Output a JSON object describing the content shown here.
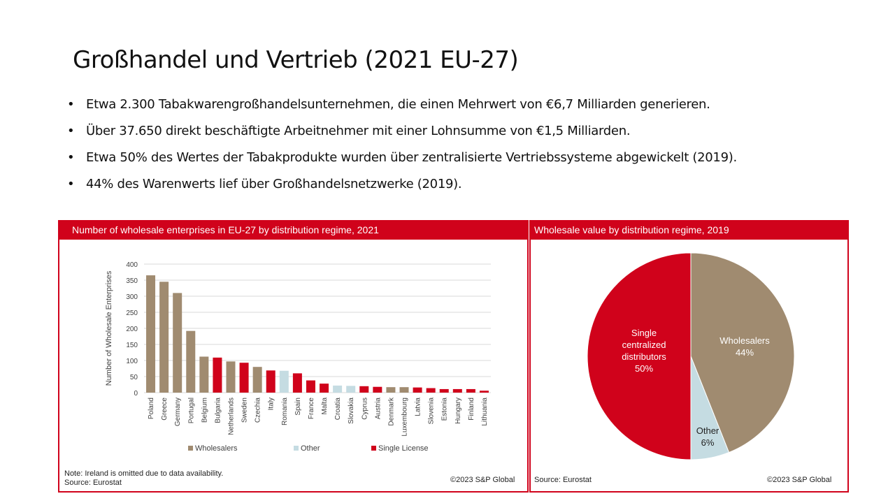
{
  "slide": {
    "title": "Großhandel und Vertrieb (2021 EU-27)",
    "bullet_char": "•",
    "bullets": [
      "Etwa 2.300 Tabakwarengroßhandelsunternehmen, die einen Mehrwert von €6,7 Milliarden generieren.",
      "Über 37.650 direkt beschäftigte Arbeitnehmer mit einer Lohnsumme von €1,5 Milliarden.",
      "Etwa 50% des Wertes der Tabakprodukte wurden über zentralisierte Vertriebssysteme abgewickelt (2019).",
      "44% des Warenwerts lief über Großhandelsnetzwerke (2019)."
    ]
  },
  "left_panel": {
    "header": "Number of wholesale enterprises in EU-27 by distribution regime, 2021",
    "note": "Note: Ireland is omitted due to data availability.",
    "source": "Source: Eurostat",
    "copyright": "©2023 S&P Global"
  },
  "right_panel": {
    "header": "Wholesale value by distribution regime, 2019",
    "source": "Source: Eurostat",
    "copyright": "©2023 S&P Global"
  },
  "colors": {
    "accent_red": "#d0021b",
    "wholesalers": "#a08b70",
    "other": "#c5dce2",
    "single": "#d0021b"
  },
  "chart_data": [
    {
      "type": "bar",
      "title": "Number of wholesale enterprises in EU-27 by distribution regime, 2021",
      "ylabel": "Number of Wholesale Enterprises",
      "ylim": [
        0,
        400
      ],
      "yticks": [
        0,
        50,
        100,
        150,
        200,
        250,
        300,
        350,
        400
      ],
      "grid": true,
      "legend": {
        "placement": "bottom",
        "entries": [
          {
            "name": "Wholesalers",
            "color": "#a08b70"
          },
          {
            "name": "Other",
            "color": "#c5dce2"
          },
          {
            "name": "Single License",
            "color": "#d0021b"
          }
        ]
      },
      "categories": [
        "Poland",
        "Greece",
        "Germany",
        "Portugal",
        "Belgium",
        "Bulgaria",
        "Netherlands",
        "Sweden",
        "Czechia",
        "Italy",
        "Romania",
        "Spain",
        "France",
        "Malta",
        "Croatia",
        "Slovakia",
        "Cyprus",
        "Austria",
        "Denmark",
        "Luxembourg",
        "Latvia",
        "Slovenia",
        "Estonia",
        "Hungary",
        "Finland",
        "Lithuania"
      ],
      "values": [
        365,
        345,
        310,
        192,
        112,
        109,
        97,
        93,
        80,
        69,
        68,
        60,
        38,
        28,
        22,
        21,
        20,
        18,
        17,
        17,
        16,
        14,
        11,
        11,
        11,
        6
      ],
      "regime": [
        "Wholesalers",
        "Wholesalers",
        "Wholesalers",
        "Wholesalers",
        "Wholesalers",
        "Single License",
        "Wholesalers",
        "Single License",
        "Wholesalers",
        "Single License",
        "Other",
        "Single License",
        "Single License",
        "Single License",
        "Other",
        "Other",
        "Single License",
        "Single License",
        "Wholesalers",
        "Wholesalers",
        "Single License",
        "Single License",
        "Single License",
        "Single License",
        "Single License",
        "Single License"
      ]
    },
    {
      "type": "pie",
      "title": "Wholesale value by distribution regime, 2019",
      "slices": [
        {
          "label": "Wholesalers",
          "value": 44,
          "display": [
            "Wholesalers",
            "44%"
          ],
          "color": "#a08b70"
        },
        {
          "label": "Other",
          "value": 6,
          "display": [
            "Other",
            "6%"
          ],
          "color": "#c5dce2"
        },
        {
          "label": "Single centralized distributors",
          "value": 50,
          "display": [
            "Single",
            "centralized",
            "distributors",
            "50%"
          ],
          "color": "#d0021b"
        }
      ]
    }
  ]
}
